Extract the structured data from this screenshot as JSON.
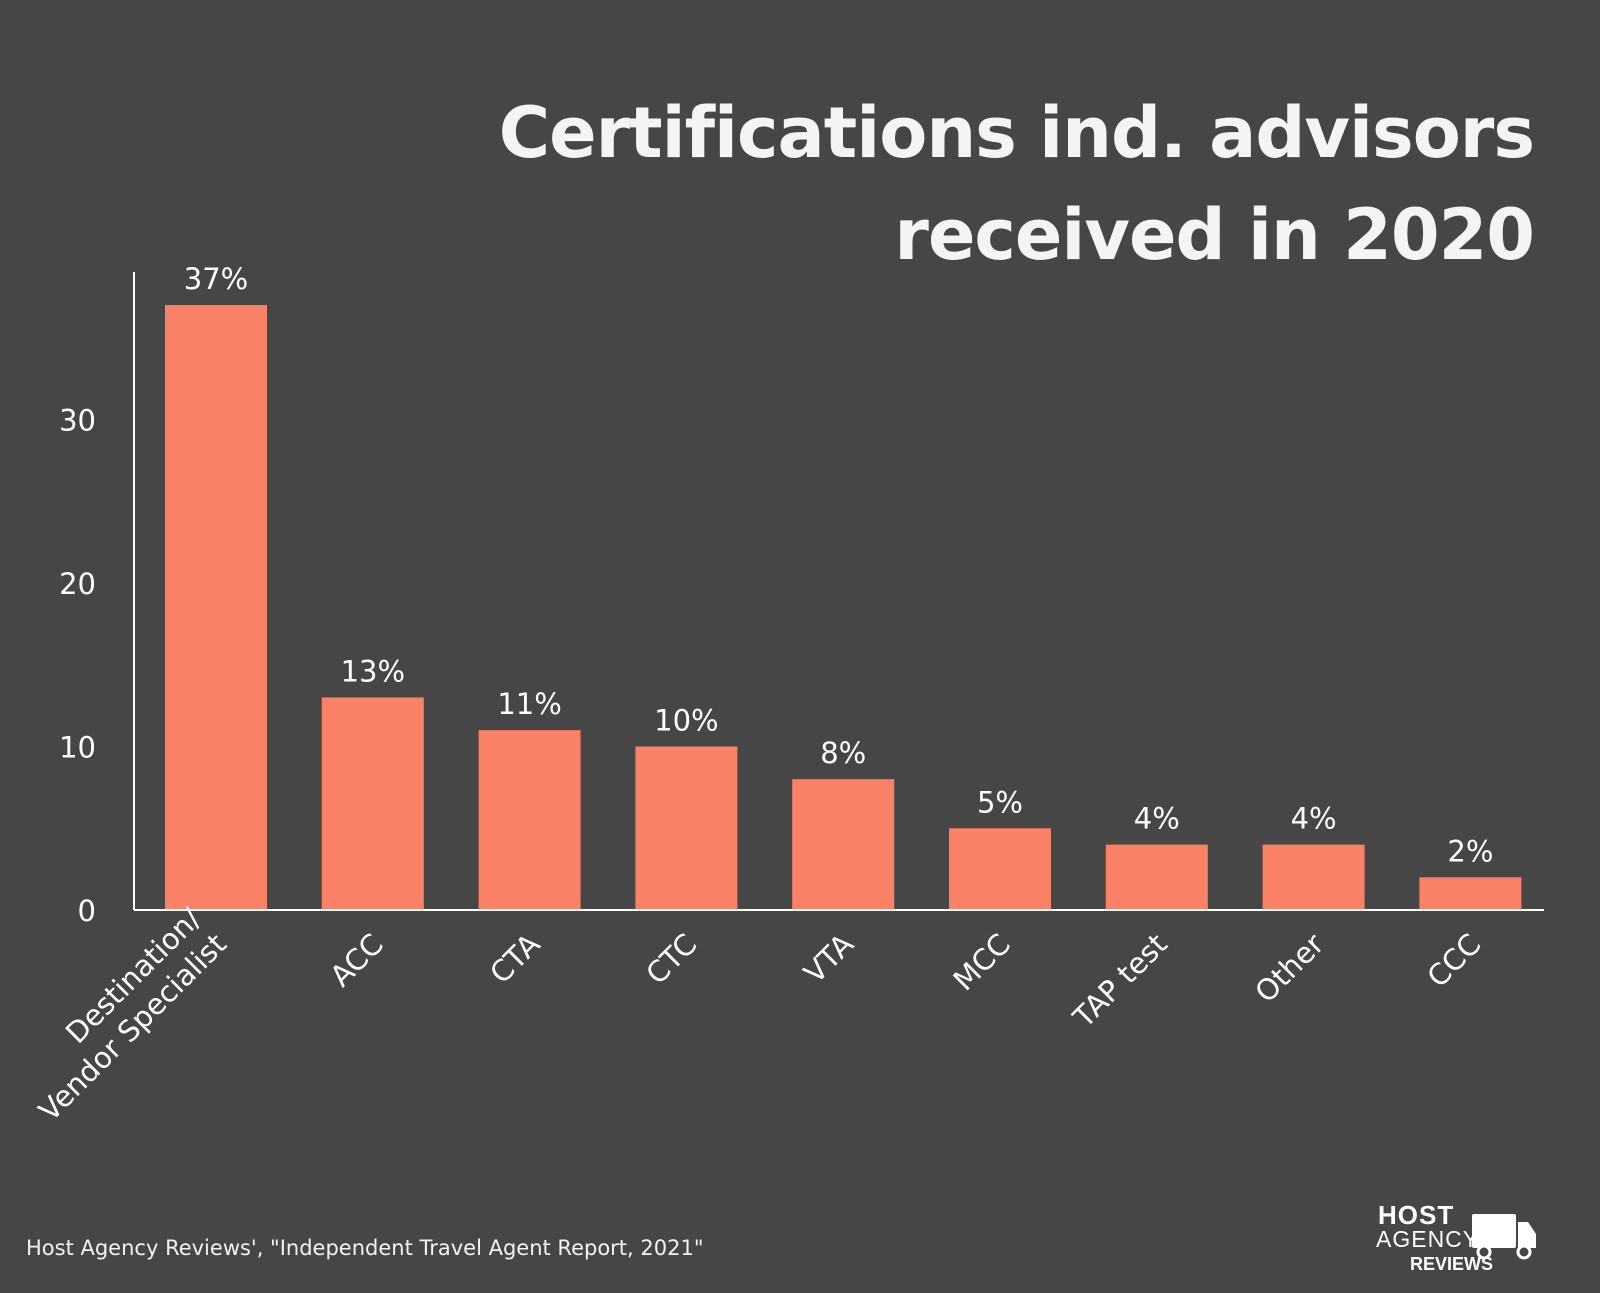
{
  "chart_title": {
    "line1": "Certifications ind. advisors",
    "line2": "received in 2020"
  },
  "chart_data": {
    "type": "bar",
    "title": "Certifications ind. advisors received in 2020",
    "categories": [
      "Destination/ Vendor Specialist",
      "ACC",
      "CTA",
      "CTC",
      "VTA",
      "MCC",
      "TAP test",
      "Other",
      "CCC"
    ],
    "category_lines": [
      [
        "Destination/",
        "Vendor Specialist"
      ],
      [
        "ACC"
      ],
      [
        "CTA"
      ],
      [
        "CTC"
      ],
      [
        "VTA"
      ],
      [
        "MCC"
      ],
      [
        "TAP test"
      ],
      [
        "Other"
      ],
      [
        "CCC"
      ]
    ],
    "values": [
      37,
      13,
      11,
      10,
      8,
      5,
      4,
      4,
      2
    ],
    "data_labels": [
      "37%",
      "13%",
      "11%",
      "10%",
      "8%",
      "5%",
      "4%",
      "4%",
      "2%"
    ],
    "yticks": [
      0,
      10,
      20,
      30
    ],
    "ylim": [
      0,
      39
    ],
    "xlabel": "",
    "ylabel": "",
    "grid": false,
    "legend": "none",
    "bar_color": "#f98166",
    "text_color": "#ffffff",
    "axis_color": "#ffffff"
  },
  "source_text": "Host Agency Reviews', \"Independent Travel Agent Report, 2021\"",
  "logo": {
    "line1": "HOST",
    "line2": "AGENCY",
    "line3": "REVIEWS",
    "icon": "truck-icon"
  },
  "background_color": "#464646"
}
